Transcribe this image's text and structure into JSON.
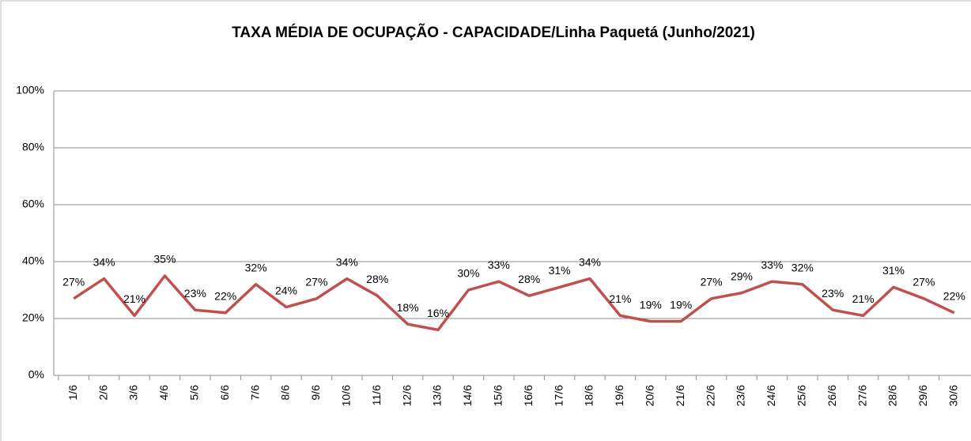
{
  "chart_data": {
    "type": "line",
    "title": "TAXA MÉDIA DE OCUPAÇÃO - CAPACIDADE/Linha Paquetá (Junho/2021)",
    "categories": [
      "1/6",
      "2/6",
      "3/6",
      "4/6",
      "5/6",
      "6/6",
      "7/6",
      "8/6",
      "9/6",
      "10/6",
      "11/6",
      "12/6",
      "13/6",
      "14/6",
      "15/6",
      "16/6",
      "17/6",
      "18/6",
      "19/6",
      "20/6",
      "21/6",
      "22/6",
      "23/6",
      "24/6",
      "25/6",
      "26/6",
      "27/6",
      "28/6",
      "29/6",
      "30/6"
    ],
    "series": [
      {
        "name": "Taxa média de ocupação",
        "color": "#c0504d",
        "values": [
          27,
          34,
          21,
          35,
          23,
          22,
          32,
          24,
          27,
          34,
          28,
          18,
          16,
          30,
          33,
          28,
          31,
          34,
          21,
          19,
          19,
          27,
          29,
          33,
          32,
          23,
          21,
          31,
          27,
          22
        ],
        "value_labels": [
          "27%",
          "34%",
          "21%",
          "35%",
          "23%",
          "22%",
          "32%",
          "24%",
          "27%",
          "34%",
          "28%",
          "18%",
          "16%",
          "30%",
          "33%",
          "28%",
          "31%",
          "34%",
          "21%",
          "19%",
          "19%",
          "27%",
          "29%",
          "33%",
          "32%",
          "23%",
          "21%",
          "31%",
          "27%",
          "22%"
        ]
      }
    ],
    "ylim": [
      0,
      100
    ],
    "yticks": [
      {
        "value": 0,
        "label": "0%"
      },
      {
        "value": 20,
        "label": "20%"
      },
      {
        "value": 40,
        "label": "40%"
      },
      {
        "value": 60,
        "label": "60%"
      },
      {
        "value": 80,
        "label": "80%"
      },
      {
        "value": 100,
        "label": "100%"
      }
    ],
    "grid": true
  }
}
